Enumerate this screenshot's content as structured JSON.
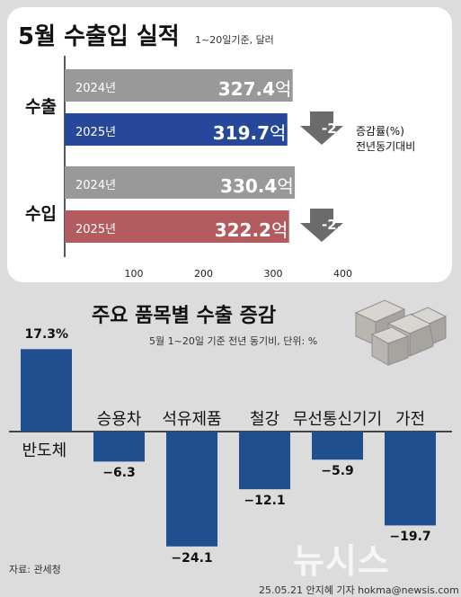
{
  "chart_data": [
    {
      "type": "bar",
      "orientation": "horizontal",
      "title": "5월 수출입 실적",
      "subtitle": "1~20일기준, 달러",
      "xlim": [
        0,
        400
      ],
      "x_ticks": [
        "100",
        "200",
        "300",
        "400"
      ],
      "categories": [
        "수출",
        "수입"
      ],
      "series": [
        {
          "name": "2024년",
          "color": "#999999",
          "values": [
            327.4,
            330.4
          ],
          "labels": [
            "327.4억",
            "330.4억"
          ]
        },
        {
          "name": "2025년",
          "colors": [
            "#27489a",
            "#b35b5e"
          ],
          "values": [
            319.7,
            322.2
          ],
          "labels": [
            "319.7억",
            "322.2억"
          ]
        }
      ],
      "change_rates": [
        "-2.4",
        "-2.5"
      ],
      "rate_note": [
        "증감률(%)",
        "전년동기대비"
      ]
    },
    {
      "type": "bar",
      "title": "주요 품목별 수출 증감",
      "subtitle": "5월 1~20일 기준 전년 동기비, 단위: %",
      "bar_color": "#1f4f8e",
      "categories": [
        "반도체",
        "승용차",
        "석유제품",
        "철강",
        "무선통신기기",
        "가전"
      ],
      "values": [
        17.3,
        -6.3,
        -24.1,
        -12.1,
        -5.9,
        -19.7
      ],
      "labels": [
        "17.3%",
        "-6.3",
        "-24.1",
        "-12.1",
        "-5.9",
        "-19.7"
      ]
    }
  ],
  "source": "자료: 관세청",
  "credit": "25.05.21 안지혜 기자 hokma@newsis.com",
  "watermark": "뉴시스"
}
